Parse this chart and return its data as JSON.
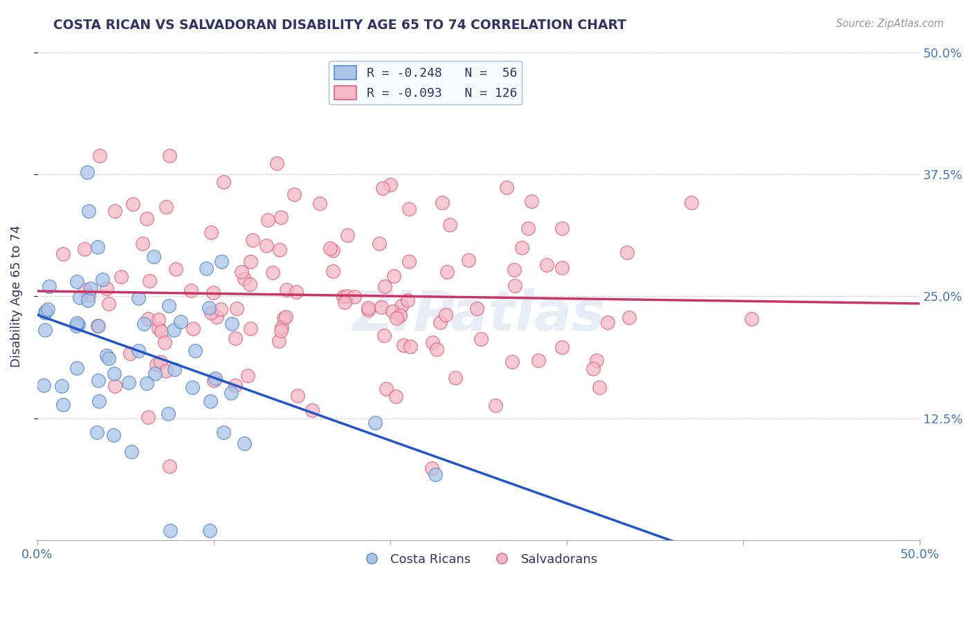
{
  "title": "COSTA RICAN VS SALVADORAN DISABILITY AGE 65 TO 74 CORRELATION CHART",
  "source": "Source: ZipAtlas.com",
  "ylabel": "Disability Age 65 to 74",
  "xlabel": "",
  "watermark": "ZIPatlas",
  "xmin": 0.0,
  "xmax": 0.5,
  "ymin": 0.0,
  "ymax": 0.5,
  "ytick_positions": [
    0.125,
    0.25,
    0.375,
    0.5
  ],
  "ytick_labels": [
    "12.5%",
    "25.0%",
    "37.5%",
    "50.0%"
  ],
  "blue_R": -0.248,
  "blue_N": 56,
  "pink_R": -0.093,
  "pink_N": 126,
  "blue_color": "#aac4e8",
  "pink_color": "#f5b8c8",
  "blue_edge_color": "#5588cc",
  "pink_edge_color": "#e06080",
  "blue_line_color": "#2255cc",
  "pink_line_color": "#cc3366",
  "blue_label": "Costa Ricans",
  "pink_label": "Salvadorans",
  "background_color": "#ffffff",
  "grid_color": "#cccccc",
  "title_color": "#333366",
  "axis_label_color": "#333366",
  "tick_label_color": "#4477bb"
}
